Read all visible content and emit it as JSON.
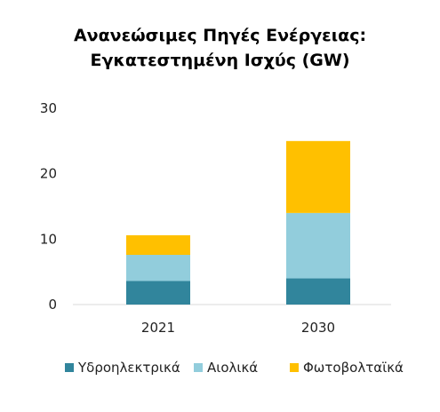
{
  "chart_data": {
    "type": "bar",
    "stacked": true,
    "title_lines": [
      "Ανανεώσιμες Πηγές Ενέργειας:",
      "Εγκατεστημένη Ισχύς (GW)"
    ],
    "categories": [
      "2021",
      "2030"
    ],
    "series": [
      {
        "name": "Υδροηλεκτρικά",
        "values": [
          3.6,
          4.0
        ],
        "color": "#31859C"
      },
      {
        "name": "Αιολικά",
        "values": [
          4.0,
          10.0
        ],
        "color": "#92CDDC"
      },
      {
        "name": "Φωτοβολταϊκά",
        "values": [
          3.0,
          11.0
        ],
        "color": "#FFC000"
      }
    ],
    "ylim": [
      0,
      30
    ],
    "yticks": [
      0,
      10,
      20,
      30
    ],
    "grid": false,
    "legend_position": "bottom"
  }
}
